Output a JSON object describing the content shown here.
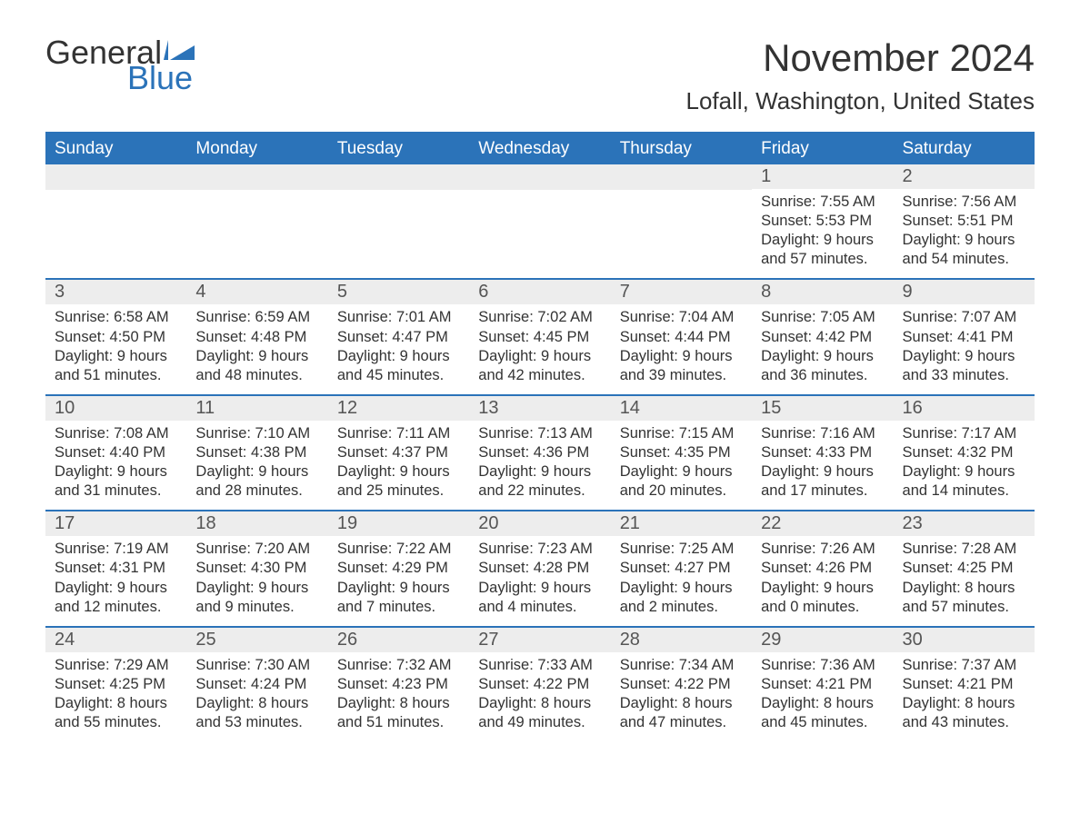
{
  "logo": {
    "word1": "General",
    "word2": "Blue"
  },
  "title": "November 2024",
  "location": "Lofall, Washington, United States",
  "colors": {
    "header_bg": "#2b73b9",
    "header_text": "#ffffff",
    "border": "#2b73b9",
    "daynum_bg": "#ededed",
    "text": "#333333",
    "logo_blue": "#2b73b9"
  },
  "weekdays": [
    "Sunday",
    "Monday",
    "Tuesday",
    "Wednesday",
    "Thursday",
    "Friday",
    "Saturday"
  ],
  "weeks": [
    [
      {
        "empty": true
      },
      {
        "empty": true
      },
      {
        "empty": true
      },
      {
        "empty": true
      },
      {
        "empty": true
      },
      {
        "num": "1",
        "sunrise": "Sunrise: 7:55 AM",
        "sunset": "Sunset: 5:53 PM",
        "dl1": "Daylight: 9 hours",
        "dl2": "and 57 minutes."
      },
      {
        "num": "2",
        "sunrise": "Sunrise: 7:56 AM",
        "sunset": "Sunset: 5:51 PM",
        "dl1": "Daylight: 9 hours",
        "dl2": "and 54 minutes."
      }
    ],
    [
      {
        "num": "3",
        "sunrise": "Sunrise: 6:58 AM",
        "sunset": "Sunset: 4:50 PM",
        "dl1": "Daylight: 9 hours",
        "dl2": "and 51 minutes."
      },
      {
        "num": "4",
        "sunrise": "Sunrise: 6:59 AM",
        "sunset": "Sunset: 4:48 PM",
        "dl1": "Daylight: 9 hours",
        "dl2": "and 48 minutes."
      },
      {
        "num": "5",
        "sunrise": "Sunrise: 7:01 AM",
        "sunset": "Sunset: 4:47 PM",
        "dl1": "Daylight: 9 hours",
        "dl2": "and 45 minutes."
      },
      {
        "num": "6",
        "sunrise": "Sunrise: 7:02 AM",
        "sunset": "Sunset: 4:45 PM",
        "dl1": "Daylight: 9 hours",
        "dl2": "and 42 minutes."
      },
      {
        "num": "7",
        "sunrise": "Sunrise: 7:04 AM",
        "sunset": "Sunset: 4:44 PM",
        "dl1": "Daylight: 9 hours",
        "dl2": "and 39 minutes."
      },
      {
        "num": "8",
        "sunrise": "Sunrise: 7:05 AM",
        "sunset": "Sunset: 4:42 PM",
        "dl1": "Daylight: 9 hours",
        "dl2": "and 36 minutes."
      },
      {
        "num": "9",
        "sunrise": "Sunrise: 7:07 AM",
        "sunset": "Sunset: 4:41 PM",
        "dl1": "Daylight: 9 hours",
        "dl2": "and 33 minutes."
      }
    ],
    [
      {
        "num": "10",
        "sunrise": "Sunrise: 7:08 AM",
        "sunset": "Sunset: 4:40 PM",
        "dl1": "Daylight: 9 hours",
        "dl2": "and 31 minutes."
      },
      {
        "num": "11",
        "sunrise": "Sunrise: 7:10 AM",
        "sunset": "Sunset: 4:38 PM",
        "dl1": "Daylight: 9 hours",
        "dl2": "and 28 minutes."
      },
      {
        "num": "12",
        "sunrise": "Sunrise: 7:11 AM",
        "sunset": "Sunset: 4:37 PM",
        "dl1": "Daylight: 9 hours",
        "dl2": "and 25 minutes."
      },
      {
        "num": "13",
        "sunrise": "Sunrise: 7:13 AM",
        "sunset": "Sunset: 4:36 PM",
        "dl1": "Daylight: 9 hours",
        "dl2": "and 22 minutes."
      },
      {
        "num": "14",
        "sunrise": "Sunrise: 7:15 AM",
        "sunset": "Sunset: 4:35 PM",
        "dl1": "Daylight: 9 hours",
        "dl2": "and 20 minutes."
      },
      {
        "num": "15",
        "sunrise": "Sunrise: 7:16 AM",
        "sunset": "Sunset: 4:33 PM",
        "dl1": "Daylight: 9 hours",
        "dl2": "and 17 minutes."
      },
      {
        "num": "16",
        "sunrise": "Sunrise: 7:17 AM",
        "sunset": "Sunset: 4:32 PM",
        "dl1": "Daylight: 9 hours",
        "dl2": "and 14 minutes."
      }
    ],
    [
      {
        "num": "17",
        "sunrise": "Sunrise: 7:19 AM",
        "sunset": "Sunset: 4:31 PM",
        "dl1": "Daylight: 9 hours",
        "dl2": "and 12 minutes."
      },
      {
        "num": "18",
        "sunrise": "Sunrise: 7:20 AM",
        "sunset": "Sunset: 4:30 PM",
        "dl1": "Daylight: 9 hours",
        "dl2": "and 9 minutes."
      },
      {
        "num": "19",
        "sunrise": "Sunrise: 7:22 AM",
        "sunset": "Sunset: 4:29 PM",
        "dl1": "Daylight: 9 hours",
        "dl2": "and 7 minutes."
      },
      {
        "num": "20",
        "sunrise": "Sunrise: 7:23 AM",
        "sunset": "Sunset: 4:28 PM",
        "dl1": "Daylight: 9 hours",
        "dl2": "and 4 minutes."
      },
      {
        "num": "21",
        "sunrise": "Sunrise: 7:25 AM",
        "sunset": "Sunset: 4:27 PM",
        "dl1": "Daylight: 9 hours",
        "dl2": "and 2 minutes."
      },
      {
        "num": "22",
        "sunrise": "Sunrise: 7:26 AM",
        "sunset": "Sunset: 4:26 PM",
        "dl1": "Daylight: 9 hours",
        "dl2": "and 0 minutes."
      },
      {
        "num": "23",
        "sunrise": "Sunrise: 7:28 AM",
        "sunset": "Sunset: 4:25 PM",
        "dl1": "Daylight: 8 hours",
        "dl2": "and 57 minutes."
      }
    ],
    [
      {
        "num": "24",
        "sunrise": "Sunrise: 7:29 AM",
        "sunset": "Sunset: 4:25 PM",
        "dl1": "Daylight: 8 hours",
        "dl2": "and 55 minutes."
      },
      {
        "num": "25",
        "sunrise": "Sunrise: 7:30 AM",
        "sunset": "Sunset: 4:24 PM",
        "dl1": "Daylight: 8 hours",
        "dl2": "and 53 minutes."
      },
      {
        "num": "26",
        "sunrise": "Sunrise: 7:32 AM",
        "sunset": "Sunset: 4:23 PM",
        "dl1": "Daylight: 8 hours",
        "dl2": "and 51 minutes."
      },
      {
        "num": "27",
        "sunrise": "Sunrise: 7:33 AM",
        "sunset": "Sunset: 4:22 PM",
        "dl1": "Daylight: 8 hours",
        "dl2": "and 49 minutes."
      },
      {
        "num": "28",
        "sunrise": "Sunrise: 7:34 AM",
        "sunset": "Sunset: 4:22 PM",
        "dl1": "Daylight: 8 hours",
        "dl2": "and 47 minutes."
      },
      {
        "num": "29",
        "sunrise": "Sunrise: 7:36 AM",
        "sunset": "Sunset: 4:21 PM",
        "dl1": "Daylight: 8 hours",
        "dl2": "and 45 minutes."
      },
      {
        "num": "30",
        "sunrise": "Sunrise: 7:37 AM",
        "sunset": "Sunset: 4:21 PM",
        "dl1": "Daylight: 8 hours",
        "dl2": "and 43 minutes."
      }
    ]
  ]
}
